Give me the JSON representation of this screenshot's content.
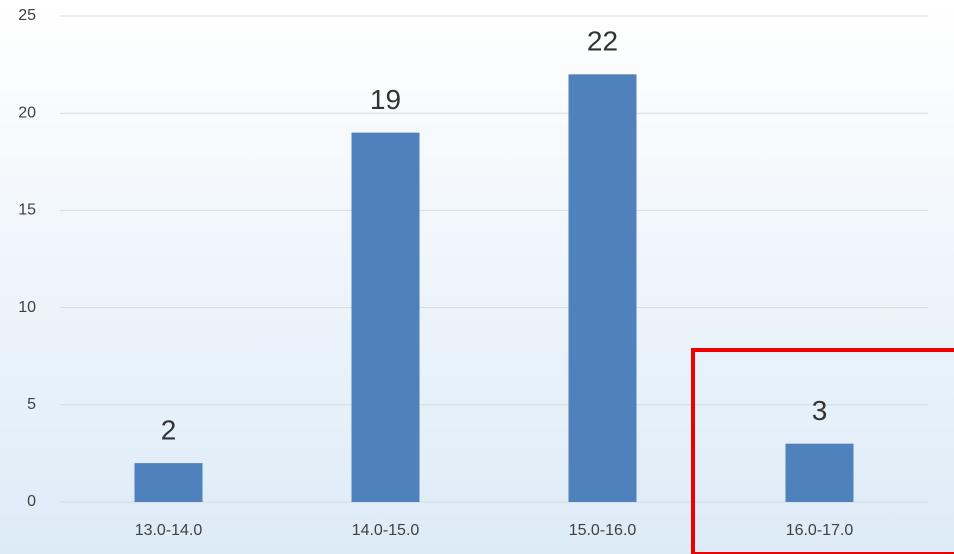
{
  "chart_data": {
    "type": "bar",
    "categories": [
      "13.0-14.0",
      "14.0-15.0",
      "15.0-16.0",
      "16.0-17.0"
    ],
    "values": [
      2,
      19,
      22,
      3
    ],
    "color": "#4f81bd",
    "ylim": [
      0,
      25
    ],
    "yticks": [
      0,
      5,
      10,
      15,
      20,
      25
    ],
    "grid": true
  }
}
